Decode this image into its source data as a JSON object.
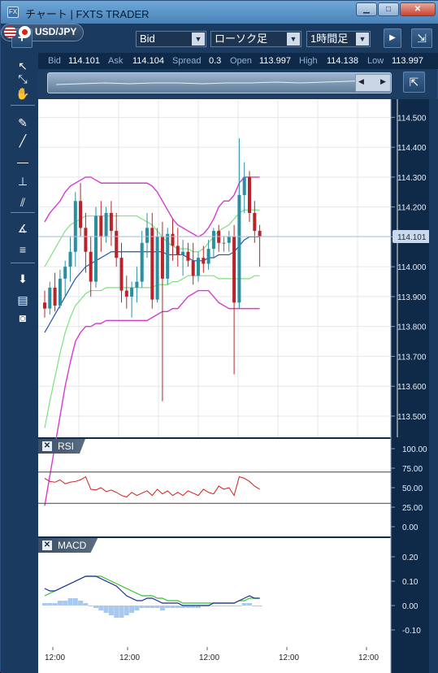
{
  "window": {
    "title": "チャート | FXTS TRADER",
    "app_icon": "FX",
    "min_icon": "minimize-icon",
    "max_icon": "maximize-icon",
    "close_icon": "close-icon"
  },
  "toolbar": {
    "add_label": "+",
    "pair": "USD/JPY",
    "price_type": "Bid",
    "chart_type": "ローソク足",
    "timeframe": "1時間足"
  },
  "quote": {
    "bid_label": "Bid",
    "bid": "114.101",
    "ask_label": "Ask",
    "ask": "114.104",
    "spread_label": "Spread",
    "spread": "0.3",
    "open_label": "Open",
    "open": "113.997",
    "high_label": "High",
    "high": "114.138",
    "low_label": "Low",
    "low": "113.997"
  },
  "left_tools": [
    "pointer-icon",
    "crosshair-icon",
    "hand-icon",
    "pen-icon",
    "trendline-icon",
    "horizontal-line-icon",
    "vertical-line-icon",
    "channel-icon",
    "fibonacci-icon",
    "fib-retracement-icon",
    "download-icon",
    "list-icon",
    "camera-icon"
  ],
  "colors": {
    "bg": "#ffffff",
    "up": "#2a8fa0",
    "down": "#b8242a",
    "bb_outer": "#d63bd0",
    "bb_inner": "#7de07d",
    "ma": "#2053b8",
    "rsi": "#d0201a",
    "macd": "#1a2a9a",
    "signal": "#2ec42e",
    "hist": "#a9c8ee",
    "grid": "#e3e7ec"
  },
  "price_axis": {
    "labels": [
      "114.500",
      "114.400",
      "114.300",
      "114.200",
      "114.100",
      "114.000",
      "113.900",
      "113.800",
      "113.700",
      "113.600",
      "113.500"
    ],
    "current": "114.101"
  },
  "rsi": {
    "label": "RSI",
    "axis": [
      "100.00",
      "75.00",
      "50.00",
      "25.00",
      "0.00"
    ]
  },
  "macd": {
    "label": "MACD",
    "axis": [
      "0.20",
      "0.10",
      "0.00",
      "-0.10"
    ]
  },
  "time_axis": [
    "12:00",
    "12:00",
    "12:00",
    "12:00",
    "12:00"
  ],
  "chart_data": {
    "type": "candlestick",
    "ylim": [
      113.44,
      114.55
    ],
    "candles": [
      [
        113.88,
        113.92,
        113.83,
        113.86
      ],
      [
        113.86,
        113.95,
        113.84,
        113.93
      ],
      [
        113.93,
        113.98,
        113.85,
        113.87
      ],
      [
        113.87,
        113.99,
        113.86,
        113.96
      ],
      [
        113.96,
        114.02,
        113.9,
        114.0
      ],
      [
        114.0,
        114.1,
        113.95,
        114.05
      ],
      [
        114.05,
        114.25,
        114.0,
        114.22
      ],
      [
        114.22,
        114.28,
        114.1,
        114.13
      ],
      [
        114.13,
        114.18,
        113.98,
        114.05
      ],
      [
        114.05,
        114.1,
        113.9,
        113.95
      ],
      [
        113.95,
        114.2,
        113.93,
        114.17
      ],
      [
        114.17,
        114.22,
        114.05,
        114.1
      ],
      [
        114.1,
        114.2,
        114.08,
        114.18
      ],
      [
        114.18,
        114.22,
        114.07,
        114.12
      ],
      [
        114.12,
        114.18,
        114.0,
        114.03
      ],
      [
        114.03,
        114.08,
        113.88,
        113.92
      ],
      [
        113.92,
        113.97,
        113.86,
        113.9
      ],
      [
        113.9,
        113.95,
        113.83,
        113.93
      ],
      [
        113.93,
        114.0,
        113.88,
        113.95
      ],
      [
        113.95,
        114.12,
        113.93,
        114.08
      ],
      [
        114.08,
        114.18,
        114.03,
        114.13
      ],
      [
        114.13,
        114.18,
        113.86,
        113.89
      ],
      [
        113.89,
        114.13,
        113.88,
        114.1
      ],
      [
        114.1,
        114.15,
        113.55,
        113.96
      ],
      [
        113.96,
        114.13,
        113.94,
        114.11
      ],
      [
        114.11,
        114.16,
        114.02,
        114.07
      ],
      [
        114.07,
        114.13,
        114.0,
        114.04
      ],
      [
        114.04,
        114.09,
        113.97,
        114.05
      ],
      [
        114.05,
        114.08,
        114.0,
        114.02
      ],
      [
        114.02,
        114.08,
        113.94,
        113.97
      ],
      [
        113.97,
        114.05,
        113.95,
        114.03
      ],
      [
        114.03,
        114.07,
        113.98,
        114.01
      ],
      [
        114.01,
        114.09,
        113.99,
        114.06
      ],
      [
        114.06,
        114.13,
        114.03,
        114.12
      ],
      [
        114.12,
        114.14,
        114.05,
        114.08
      ],
      [
        114.08,
        114.1,
        114.05,
        114.08
      ],
      [
        114.08,
        114.12,
        114.05,
        114.1
      ],
      [
        114.1,
        114.14,
        113.64,
        113.88
      ],
      [
        113.88,
        114.43,
        113.86,
        114.24
      ],
      [
        114.24,
        114.35,
        114.18,
        114.3
      ],
      [
        114.3,
        114.32,
        114.15,
        114.18
      ],
      [
        114.18,
        114.22,
        114.08,
        114.12
      ],
      [
        114.12,
        114.14,
        114.0,
        114.1
      ]
    ],
    "bb_upper": [
      114.15,
      114.18,
      114.2,
      114.22,
      114.25,
      114.27,
      114.28,
      114.29,
      114.3,
      114.3,
      114.29,
      114.28,
      114.28,
      114.28,
      114.28,
      114.28,
      114.28,
      114.28,
      114.28,
      114.28,
      114.28,
      114.27,
      114.25,
      114.22,
      114.19,
      114.16,
      114.14,
      114.13,
      114.12,
      114.11,
      114.1,
      114.11,
      114.13,
      114.16,
      114.2,
      114.22,
      114.22,
      114.24,
      114.28,
      114.3,
      114.3,
      114.3,
      114.3
    ],
    "bb_lower": [
      113.2,
      113.3,
      113.4,
      113.5,
      113.6,
      113.68,
      113.75,
      113.78,
      113.8,
      113.8,
      113.81,
      113.81,
      113.82,
      113.82,
      113.82,
      113.82,
      113.82,
      113.82,
      113.82,
      113.82,
      113.82,
      113.83,
      113.84,
      113.85,
      113.85,
      113.86,
      113.86,
      113.88,
      113.9,
      113.91,
      113.92,
      113.92,
      113.92,
      113.9,
      113.88,
      113.87,
      113.86,
      113.86,
      113.86,
      113.86,
      113.86,
      113.86,
      113.86
    ],
    "bb_mid_up": [
      114.0,
      114.03,
      114.06,
      114.09,
      114.12,
      114.14,
      114.15,
      114.16,
      114.17,
      114.17,
      114.17,
      114.17,
      114.17,
      114.17,
      114.17,
      114.17,
      114.17,
      114.17,
      114.17,
      114.16,
      114.15,
      114.14,
      114.12,
      114.1,
      114.08,
      114.07,
      114.06,
      114.06,
      114.06,
      114.05,
      114.05,
      114.06,
      114.08,
      114.1,
      114.12,
      114.13,
      114.14,
      114.16,
      114.18,
      114.19,
      114.19,
      114.19,
      114.19
    ],
    "bb_mid_low": [
      113.46,
      113.55,
      113.63,
      113.71,
      113.78,
      113.83,
      113.87,
      113.89,
      113.91,
      113.92,
      113.92,
      113.92,
      113.93,
      113.93,
      113.93,
      113.93,
      113.93,
      113.93,
      113.93,
      113.93,
      113.93,
      113.93,
      113.94,
      113.94,
      113.94,
      113.95,
      113.95,
      113.96,
      113.97,
      113.97,
      113.97,
      113.97,
      113.97,
      113.97,
      113.96,
      113.96,
      113.96,
      113.96,
      113.96,
      113.96,
      113.96,
      113.97,
      113.97
    ],
    "ma": [
      113.78,
      113.81,
      113.84,
      113.87,
      113.9,
      113.93,
      113.96,
      113.98,
      114.0,
      114.01,
      114.02,
      114.03,
      114.04,
      114.05,
      114.05,
      114.05,
      114.05,
      114.05,
      114.05,
      114.05,
      114.05,
      114.05,
      114.05,
      114.05,
      114.04,
      114.04,
      114.04,
      114.04,
      114.03,
      114.02,
      114.02,
      114.02,
      114.03,
      114.03,
      114.04,
      114.04,
      114.04,
      114.05,
      114.07,
      114.09,
      114.1,
      114.1,
      114.1
    ],
    "rsi_values": [
      62,
      58,
      57,
      60,
      55,
      57,
      58,
      60,
      64,
      48,
      47,
      50,
      45,
      47,
      44,
      40,
      38,
      44,
      40,
      43,
      46,
      40,
      48,
      42,
      46,
      40,
      44,
      40,
      46,
      43,
      40,
      48,
      44,
      42,
      52,
      48,
      50,
      40,
      64,
      62,
      58,
      52,
      48
    ],
    "macd_values": [
      0.07,
      0.06,
      0.06,
      0.07,
      0.08,
      0.09,
      0.1,
      0.11,
      0.12,
      0.12,
      0.12,
      0.11,
      0.1,
      0.09,
      0.08,
      0.06,
      0.04,
      0.03,
      0.02,
      0.02,
      0.03,
      0.03,
      0.02,
      0.01,
      0.01,
      0.01,
      0.01,
      0.0,
      0.0,
      0.0,
      0.0,
      0.0,
      0.0,
      0.01,
      0.01,
      0.01,
      0.01,
      0.01,
      0.02,
      0.03,
      0.04,
      0.03,
      0.03
    ],
    "signal_values": [
      0.04,
      0.05,
      0.06,
      0.07,
      0.08,
      0.09,
      0.1,
      0.11,
      0.12,
      0.12,
      0.12,
      0.12,
      0.11,
      0.1,
      0.09,
      0.08,
      0.07,
      0.06,
      0.05,
      0.04,
      0.04,
      0.04,
      0.03,
      0.03,
      0.02,
      0.02,
      0.02,
      0.01,
      0.01,
      0.01,
      0.01,
      0.01,
      0.01,
      0.01,
      0.01,
      0.01,
      0.01,
      0.01,
      0.02,
      0.02,
      0.03,
      0.03,
      0.03
    ],
    "hist_values": [
      0.01,
      0.01,
      0.01,
      0.02,
      0.02,
      0.03,
      0.03,
      0.02,
      0.01,
      0.0,
      -0.01,
      -0.02,
      -0.03,
      -0.04,
      -0.05,
      -0.05,
      -0.04,
      -0.03,
      -0.02,
      -0.01,
      -0.01,
      -0.01,
      -0.01,
      -0.02,
      -0.01,
      -0.01,
      -0.01,
      -0.01,
      -0.01,
      -0.01,
      -0.01,
      0.0,
      0.0,
      0.0,
      0.0,
      0.0,
      0.0,
      0.0,
      0.0,
      0.01,
      0.01,
      0.0,
      0.0
    ],
    "rsi_ylim": [
      0,
      100
    ],
    "macd_ylim": [
      -0.15,
      0.25
    ]
  }
}
